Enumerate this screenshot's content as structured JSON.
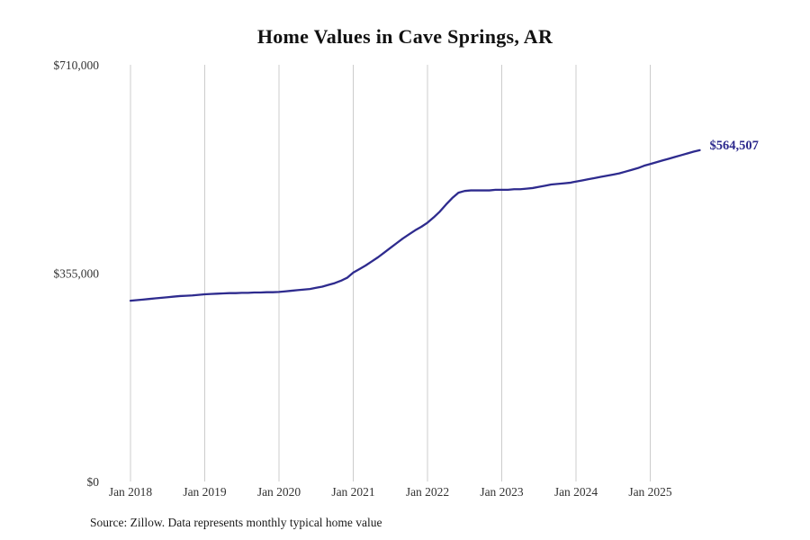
{
  "title": "Home Values in Cave Springs, AR",
  "source_note": "Source: Zillow. Data represents monthly typical home value",
  "end_label": "$564,507",
  "colors": {
    "line": "#2e2b8e",
    "grid": "#cccccc",
    "axis_text": "#333333",
    "end_label_text": "#2e2b8e",
    "title_text": "#111111"
  },
  "chart_data": {
    "type": "line",
    "title": "Home Values in Cave Springs, AR",
    "xlabel": "",
    "ylabel": "",
    "ylim": [
      0,
      710000
    ],
    "grid": "vertical-only",
    "legend": "none",
    "x_ticks": [
      "Jan 2018",
      "Jan 2019",
      "Jan 2020",
      "Jan 2021",
      "Jan 2022",
      "Jan 2023",
      "Jan 2024",
      "Jan 2025"
    ],
    "y_ticks": [
      {
        "label": "$0",
        "value": 0
      },
      {
        "label": "$355,000",
        "value": 355000
      },
      {
        "label": "$710,000",
        "value": 710000
      }
    ],
    "series": [
      {
        "name": "Monthly typical home value",
        "start": "Jan 2018",
        "frequency": "monthly",
        "values": [
          308000,
          309000,
          310000,
          311000,
          312000,
          313000,
          314000,
          315000,
          316000,
          316500,
          317000,
          318000,
          319000,
          319500,
          320000,
          320500,
          321000,
          321000,
          321500,
          321500,
          322000,
          322000,
          322500,
          322500,
          323000,
          324000,
          325000,
          326000,
          327000,
          328000,
          330000,
          332000,
          335000,
          338000,
          342000,
          347000,
          356000,
          362000,
          368000,
          375000,
          382000,
          390000,
          398000,
          406000,
          414000,
          421000,
          428000,
          434000,
          441000,
          450000,
          460000,
          472000,
          483000,
          492000,
          495000,
          496000,
          496000,
          496000,
          496000,
          497000,
          497000,
          497000,
          498000,
          498000,
          499000,
          500000,
          502000,
          504000,
          506000,
          507000,
          508000,
          509000,
          511000,
          513000,
          515000,
          517000,
          519000,
          521000,
          523000,
          525000,
          528000,
          531000,
          534000,
          538000,
          541000,
          544000,
          547000,
          550000,
          553000,
          556000,
          559000,
          562000,
          564507
        ]
      }
    ],
    "end_value": 564507,
    "end_value_label": "$564,507"
  }
}
